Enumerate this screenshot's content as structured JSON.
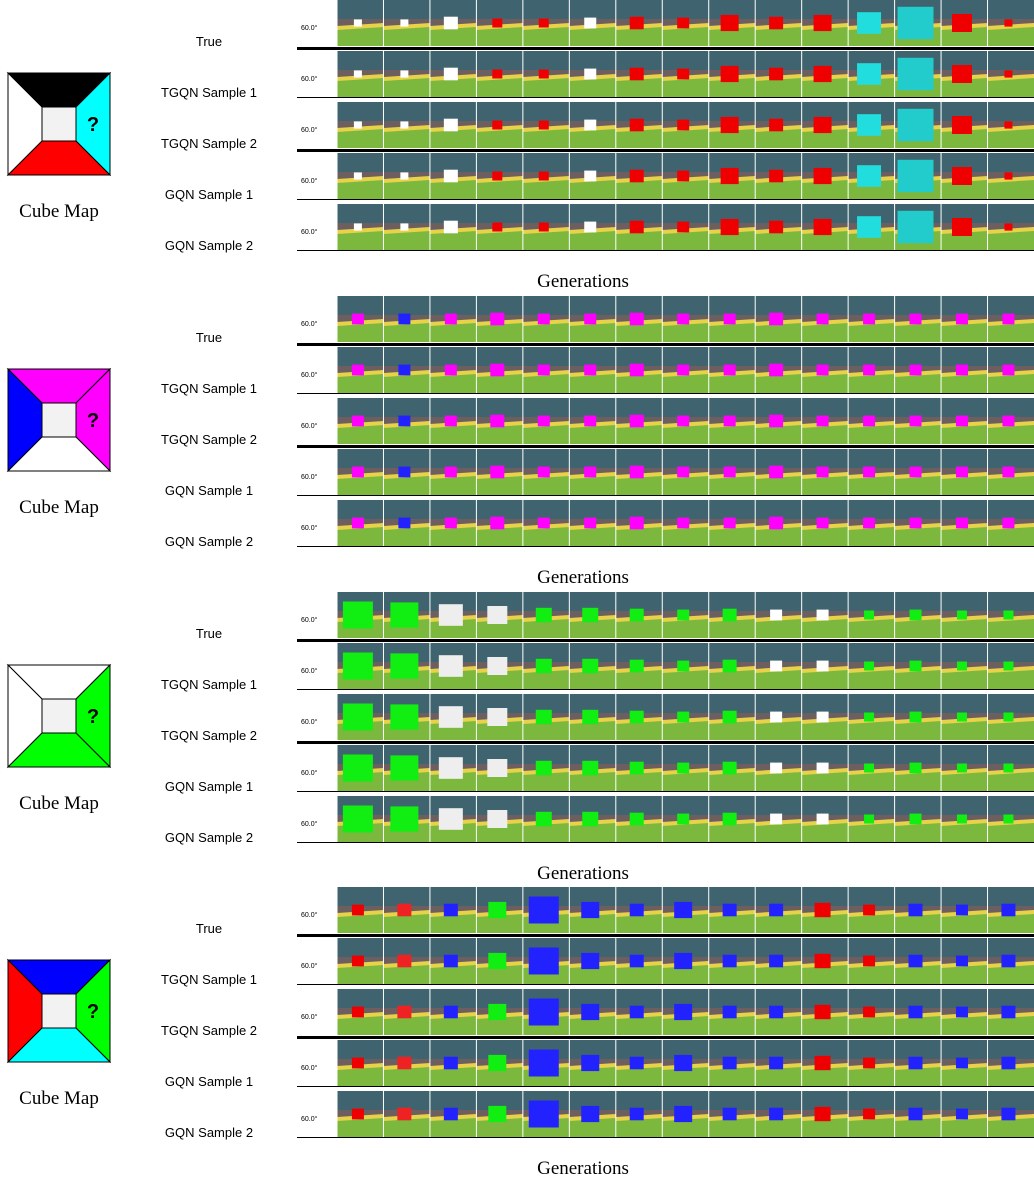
{
  "figure": {
    "blocks": [
      {
        "cube_map": {
          "mark": "?",
          "caption": "Cube Map"
        },
        "rows": [
          "True",
          "TGQN Sample 1",
          "TGQN Sample 2",
          "GQN Sample 1",
          "GQN Sample 2"
        ],
        "angle": "60.0°",
        "caption": "Generations"
      },
      {
        "cube_map": {
          "mark": "?",
          "caption": "Cube Map"
        },
        "rows": [
          "True",
          "TGQN Sample 1",
          "TGQN Sample 2",
          "GQN Sample 1",
          "GQN Sample 2"
        ],
        "angle": "60.0°",
        "caption": "Generations"
      },
      {
        "cube_map": {
          "mark": "?",
          "caption": "Cube Map"
        },
        "rows": [
          "True",
          "TGQN Sample 1",
          "TGQN Sample 2",
          "GQN Sample 1",
          "GQN Sample 2"
        ],
        "angle": "60.0°",
        "caption": "Generations"
      },
      {
        "cube_map": {
          "mark": "?",
          "caption": "Cube Map"
        },
        "rows": [
          "True",
          "TGQN Sample 1",
          "TGQN Sample 2",
          "GQN Sample 1",
          "GQN Sample 2"
        ],
        "angle": "60.0°",
        "caption": "Generations"
      }
    ]
  }
}
